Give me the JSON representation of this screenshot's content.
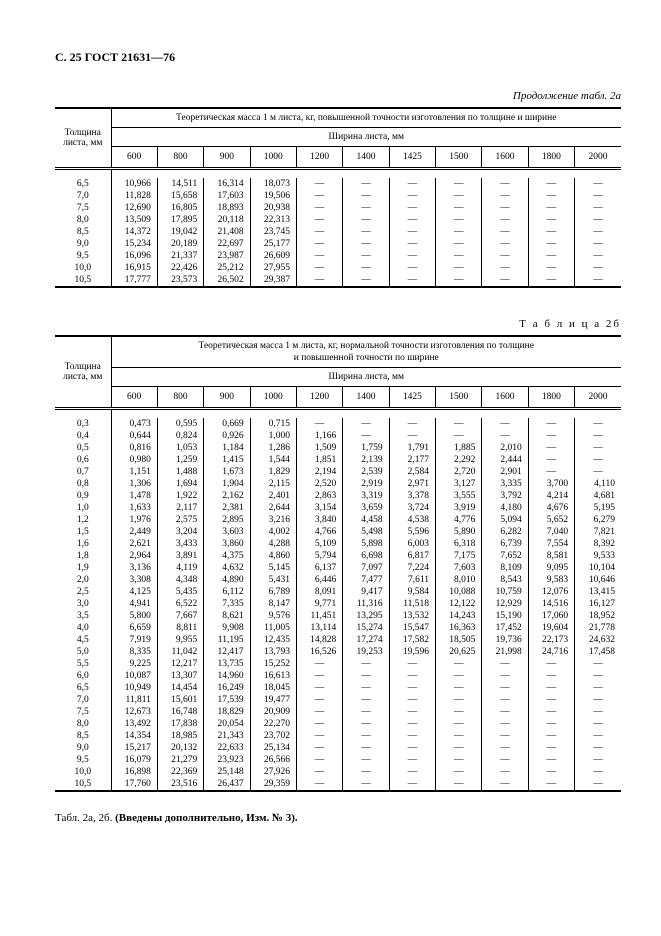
{
  "header": "С. 25 ГОСТ 21631—76",
  "cont_caption": "Продолжение табл. 2а",
  "table2b_caption": "Т а б л и ц а   2б",
  "footnote": "Табл. 2а, 2б. (Введены дополнительно, Изм. № 3).",
  "col_label_thickness": "Толщина листа, мм",
  "col_label_width": "Ширина листа, мм",
  "title_2a": "Теоретическая масса 1 м листа, кг, повышенной точности изготовления по толщине и  ширине",
  "title_2b_l1": "Теоретическая масса 1 м листа, кг, нормальной точности изготовления по толщине",
  "title_2b_l2": "и повышенной точности по ширине",
  "widths": [
    "600",
    "800",
    "900",
    "1000",
    "1200",
    "1400",
    "1425",
    "1500",
    "1600",
    "1800",
    "2000"
  ],
  "rows_a": [
    {
      "t": "6,5",
      "v": [
        "10,966",
        "14,511",
        "16,314",
        "18,073",
        "—",
        "—",
        "—",
        "—",
        "—",
        "—",
        "—"
      ]
    },
    {
      "t": "7,0",
      "v": [
        "11,828",
        "15,658",
        "17,603",
        "19,506",
        "—",
        "—",
        "—",
        "—",
        "—",
        "—",
        "—"
      ]
    },
    {
      "t": "7,5",
      "v": [
        "12,690",
        "16,805",
        "18,893",
        "20,938",
        "—",
        "—",
        "—",
        "—",
        "—",
        "—",
        "—"
      ]
    },
    {
      "t": "8,0",
      "v": [
        "13,509",
        "17,895",
        "20,118",
        "22,313",
        "—",
        "—",
        "—",
        "—",
        "—",
        "—",
        "—"
      ]
    },
    {
      "t": "8,5",
      "v": [
        "14,372",
        "19,042",
        "21,408",
        "23,745",
        "—",
        "—",
        "—",
        "—",
        "—",
        "—",
        "—"
      ]
    },
    {
      "t": "9,0",
      "v": [
        "15,234",
        "20,189",
        "22,697",
        "25,177",
        "—",
        "—",
        "—",
        "—",
        "—",
        "—",
        "—"
      ]
    },
    {
      "t": "9,5",
      "v": [
        "16,096",
        "21,337",
        "23,987",
        "26,609",
        "—",
        "—",
        "—",
        "—",
        "—",
        "—",
        "—"
      ]
    },
    {
      "t": "10,0",
      "v": [
        "16,915",
        "22,426",
        "25,212",
        "27,955",
        "—",
        "—",
        "—",
        "—",
        "—",
        "—",
        "—"
      ]
    },
    {
      "t": "10,5",
      "v": [
        "17,777",
        "23,573",
        "26,502",
        "29,387",
        "—",
        "—",
        "—",
        "—",
        "—",
        "—",
        "—"
      ]
    }
  ],
  "rows_b": [
    {
      "t": "0,3",
      "v": [
        "0,473",
        "0,595",
        "0,669",
        "0,715",
        "—",
        "—",
        "—",
        "—",
        "—",
        "—",
        "—"
      ]
    },
    {
      "t": "0,4",
      "v": [
        "0,644",
        "0,824",
        "0,926",
        "1,000",
        "1,166",
        "—",
        "—",
        "—",
        "—",
        "—",
        "—"
      ]
    },
    {
      "t": "0,5",
      "v": [
        "0,816",
        "1,053",
        "1,184",
        "1,286",
        "1,509",
        "1,759",
        "1,791",
        "1,885",
        "2,010",
        "—",
        "—"
      ]
    },
    {
      "t": "0,6",
      "v": [
        "0,980",
        "1,259",
        "1,415",
        "1,544",
        "1,851",
        "2,139",
        "2,177",
        "2,292",
        "2,444",
        "—",
        "—"
      ]
    },
    {
      "t": "0,7",
      "v": [
        "1,151",
        "1,488",
        "1,673",
        "1,829",
        "2,194",
        "2,539",
        "2,584",
        "2,720",
        "2,901",
        "—",
        "—"
      ]
    },
    {
      "t": "0,8",
      "v": [
        "1,306",
        "1,694",
        "1,904",
        "2,115",
        "2,520",
        "2,919",
        "2,971",
        "3,127",
        "3,335",
        "3,700",
        "4,110"
      ]
    },
    {
      "t": "0,9",
      "v": [
        "1,478",
        "1,922",
        "2,162",
        "2,401",
        "2,863",
        "3,319",
        "3,378",
        "3,555",
        "3,792",
        "4,214",
        "4,681"
      ]
    },
    {
      "t": "1,0",
      "v": [
        "1,633",
        "2,117",
        "2,381",
        "2,644",
        "3,154",
        "3,659",
        "3,724",
        "3,919",
        "4,180",
        "4,676",
        "5,195"
      ]
    },
    {
      "t": "1,2",
      "v": [
        "1,976",
        "2,575",
        "2,895",
        "3,216",
        "3,840",
        "4,458",
        "4,538",
        "4,776",
        "5,094",
        "5,652",
        "6,279"
      ]
    },
    {
      "t": "1,5",
      "v": [
        "2,449",
        "3,204",
        "3,603",
        "4,002",
        "4,766",
        "5,498",
        "5,596",
        "5,890",
        "6,282",
        "7,040",
        "7,821"
      ]
    },
    {
      "t": "1,6",
      "v": [
        "2,621",
        "3,433",
        "3,860",
        "4,288",
        "5,109",
        "5,898",
        "6,003",
        "6,318",
        "6,739",
        "7,554",
        "8,392"
      ]
    },
    {
      "t": "1,8",
      "v": [
        "2,964",
        "3,891",
        "4,375",
        "4,860",
        "5,794",
        "6,698",
        "6,817",
        "7,175",
        "7,652",
        "8,581",
        "9,533"
      ]
    },
    {
      "t": "1,9",
      "v": [
        "3,136",
        "4,119",
        "4,632",
        "5,145",
        "6,137",
        "7,097",
        "7,224",
        "7,603",
        "8,109",
        "9,095",
        "10,104"
      ]
    },
    {
      "t": "2,0",
      "v": [
        "3,308",
        "4,348",
        "4,890",
        "5,431",
        "6,446",
        "7,477",
        "7,611",
        "8,010",
        "8,543",
        "9,583",
        "10,646"
      ]
    },
    {
      "t": "2,5",
      "v": [
        "4,125",
        "5,435",
        "6,112",
        "6,789",
        "8,091",
        "9,417",
        "9,584",
        "10,088",
        "10,759",
        "12,076",
        "13,415"
      ]
    },
    {
      "t": "3,0",
      "v": [
        "4,941",
        "6,522",
        "7,335",
        "8,147",
        "9,771",
        "11,316",
        "11,518",
        "12,122",
        "12,929",
        "14,516",
        "16,127"
      ]
    },
    {
      "t": "3,5",
      "v": [
        "5,800",
        "7,667",
        "8,621",
        "9,576",
        "11,451",
        "13,295",
        "13,532",
        "14,243",
        "15,190",
        "17,060",
        "18,952"
      ]
    },
    {
      "t": "4,0",
      "v": [
        "6,659",
        "8,811",
        "9,908",
        "11,005",
        "13,114",
        "15,274",
        "15,547",
        "16,363",
        "17,452",
        "19,604",
        "21,778"
      ]
    },
    {
      "t": "4,5",
      "v": [
        "7,919",
        "9,955",
        "11,195",
        "12,435",
        "14,828",
        "17,274",
        "17,582",
        "18,505",
        "19,736",
        "22,173",
        "24,632"
      ]
    },
    {
      "t": "5,0",
      "v": [
        "8,335",
        "11,042",
        "12,417",
        "13,793",
        "16,526",
        "19,253",
        "19,596",
        "20,625",
        "21,998",
        "24,716",
        "17,458"
      ]
    },
    {
      "t": "5,5",
      "v": [
        "9,225",
        "12,217",
        "13,735",
        "15,252",
        "—",
        "—",
        "—",
        "—",
        "—",
        "—",
        "—"
      ]
    },
    {
      "t": "6,0",
      "v": [
        "10,087",
        "13,307",
        "14,960",
        "16,613",
        "—",
        "—",
        "—",
        "—",
        "—",
        "—",
        "—"
      ]
    },
    {
      "t": "6,5",
      "v": [
        "10,949",
        "14,454",
        "16,249",
        "18,045",
        "—",
        "—",
        "—",
        "—",
        "—",
        "—",
        "—"
      ]
    },
    {
      "t": "7,0",
      "v": [
        "11,811",
        "15,601",
        "17,539",
        "19,477",
        "—",
        "—",
        "—",
        "—",
        "—",
        "—",
        "—"
      ]
    },
    {
      "t": "7,5",
      "v": [
        "12,673",
        "16,748",
        "18,829",
        "20,909",
        "—",
        "—",
        "—",
        "—",
        "—",
        "—",
        "—"
      ]
    },
    {
      "t": "8,0",
      "v": [
        "13,492",
        "17,838",
        "20,054",
        "22,270",
        "—",
        "—",
        "—",
        "—",
        "—",
        "—",
        "—"
      ]
    },
    {
      "t": "8,5",
      "v": [
        "14,354",
        "18,985",
        "21,343",
        "23,702",
        "—",
        "—",
        "—",
        "—",
        "—",
        "—",
        "—"
      ]
    },
    {
      "t": "9,0",
      "v": [
        "15,217",
        "20,132",
        "22,633",
        "25,134",
        "—",
        "—",
        "—",
        "—",
        "—",
        "—",
        "—"
      ]
    },
    {
      "t": "9,5",
      "v": [
        "16,079",
        "21,279",
        "23,923",
        "26,566",
        "—",
        "—",
        "—",
        "—",
        "—",
        "—",
        "—"
      ]
    },
    {
      "t": "10,0",
      "v": [
        "16,898",
        "22,369",
        "25,148",
        "27,926",
        "—",
        "—",
        "—",
        "—",
        "—",
        "—",
        "—"
      ]
    },
    {
      "t": "10,5",
      "v": [
        "17,760",
        "23,516",
        "26,437",
        "29,359",
        "—",
        "—",
        "—",
        "—",
        "—",
        "—",
        "—"
      ]
    }
  ]
}
